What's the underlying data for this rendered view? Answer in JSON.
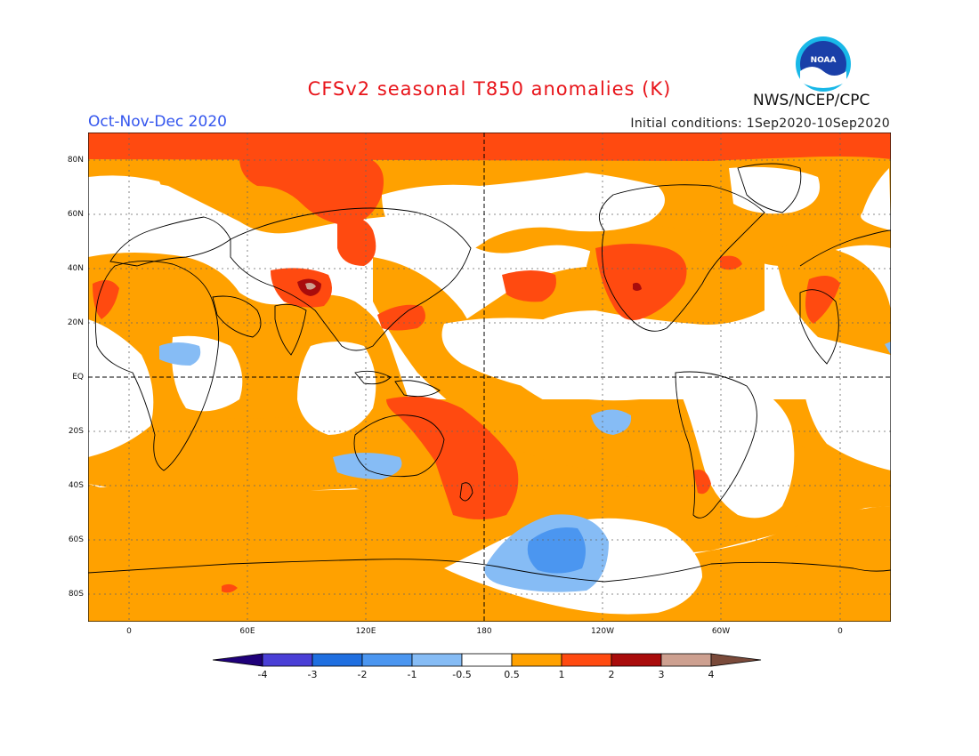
{
  "header": {
    "title": "CFSv2 seasonal T850 anomalies (K)",
    "season": "Oct-Nov-Dec 2020",
    "initial_conditions": "Initial conditions: 1Sep2020-10Sep2020",
    "agency": "NWS/NCEP/CPC",
    "logo_text": "NOAA",
    "logo_icon": "noaa-logo-icon"
  },
  "map": {
    "projection": "equirectangular",
    "lat_labels": [
      "80N",
      "60N",
      "40N",
      "20N",
      "EQ",
      "20S",
      "40S",
      "60S",
      "80S"
    ],
    "lon_labels": [
      "0",
      "60E",
      "120E",
      "180",
      "120W",
      "60W",
      "0"
    ]
  },
  "colorbar": {
    "labels": [
      "-4",
      "-3",
      "-2",
      "-1",
      "-0.5",
      "0.5",
      "1",
      "2",
      "3",
      "4"
    ],
    "colors": [
      "#1f007a",
      "#4a3fd6",
      "#1f6fe0",
      "#4b96f0",
      "#86bcf5",
      "#ffffff",
      "#ffa100",
      "#ff4a10",
      "#a90c0c",
      "#cda090",
      "#7a4a3a"
    ]
  }
}
